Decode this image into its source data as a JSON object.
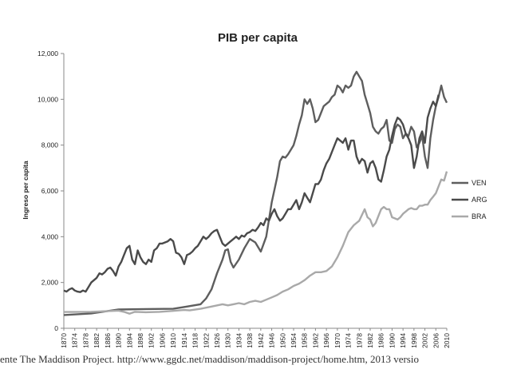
{
  "caption": "ente The Maddison Project. http://www.ggdc.net/maddison/maddison-project/home.htm, 2013 versio",
  "chart_data": {
    "type": "line",
    "title": "PIB per capita",
    "xlabel": "",
    "ylabel": "Ingreso per capita",
    "ylim": [
      0,
      12000
    ],
    "xlim": [
      1870,
      2010
    ],
    "grid": false,
    "legend_position": "right",
    "y_ticks": [
      "0",
      "2,000",
      "4,000",
      "6,000",
      "8,000",
      "10,000",
      "12,000"
    ],
    "x_ticks": [
      "1870",
      "1874",
      "1878",
      "1882",
      "1886",
      "1890",
      "1894",
      "1898",
      "1902",
      "1906",
      "1910",
      "1914",
      "1918",
      "1922",
      "1926",
      "1930",
      "1934",
      "1938",
      "1942",
      "1946",
      "1950",
      "1954",
      "1958",
      "1962",
      "1966",
      "1970",
      "1974",
      "1978",
      "1982",
      "1986",
      "1990",
      "1994",
      "1998",
      "2002",
      "2006",
      "2010"
    ],
    "series": [
      {
        "name": "VEN",
        "color": "#5e5e5e",
        "points": [
          [
            1870,
            580
          ],
          [
            1880,
            650
          ],
          [
            1890,
            820
          ],
          [
            1900,
            840
          ],
          [
            1910,
            850
          ],
          [
            1915,
            950
          ],
          [
            1920,
            1050
          ],
          [
            1922,
            1300
          ],
          [
            1924,
            1700
          ],
          [
            1926,
            2400
          ],
          [
            1928,
            3000
          ],
          [
            1929,
            3400
          ],
          [
            1930,
            3450
          ],
          [
            1931,
            2900
          ],
          [
            1932,
            2650
          ],
          [
            1934,
            3000
          ],
          [
            1936,
            3500
          ],
          [
            1938,
            3900
          ],
          [
            1940,
            3750
          ],
          [
            1942,
            3350
          ],
          [
            1944,
            4000
          ],
          [
            1946,
            5500
          ],
          [
            1948,
            6600
          ],
          [
            1949,
            7300
          ],
          [
            1950,
            7500
          ],
          [
            1951,
            7450
          ],
          [
            1952,
            7600
          ],
          [
            1953,
            7800
          ],
          [
            1954,
            8000
          ],
          [
            1955,
            8400
          ],
          [
            1956,
            8900
          ],
          [
            1957,
            9300
          ],
          [
            1958,
            10000
          ],
          [
            1959,
            9800
          ],
          [
            1960,
            10000
          ],
          [
            1961,
            9600
          ],
          [
            1962,
            9000
          ],
          [
            1963,
            9100
          ],
          [
            1964,
            9400
          ],
          [
            1965,
            9700
          ],
          [
            1966,
            9800
          ],
          [
            1967,
            9900
          ],
          [
            1968,
            10100
          ],
          [
            1969,
            10200
          ],
          [
            1970,
            10600
          ],
          [
            1971,
            10500
          ],
          [
            1972,
            10300
          ],
          [
            1973,
            10600
          ],
          [
            1974,
            10500
          ],
          [
            1975,
            10600
          ],
          [
            1976,
            11000
          ],
          [
            1977,
            11200
          ],
          [
            1978,
            11000
          ],
          [
            1979,
            10800
          ],
          [
            1980,
            10200
          ],
          [
            1981,
            9800
          ],
          [
            1982,
            9400
          ],
          [
            1983,
            8800
          ],
          [
            1984,
            8600
          ],
          [
            1985,
            8500
          ],
          [
            1986,
            8700
          ],
          [
            1987,
            8800
          ],
          [
            1988,
            9100
          ],
          [
            1989,
            8200
          ],
          [
            1990,
            8100
          ],
          [
            1991,
            8700
          ],
          [
            1992,
            8900
          ],
          [
            1993,
            8800
          ],
          [
            1994,
            8300
          ],
          [
            1995,
            8500
          ],
          [
            1996,
            8400
          ],
          [
            1997,
            8800
          ],
          [
            1998,
            8600
          ],
          [
            1999,
            7900
          ],
          [
            2000,
            8100
          ],
          [
            2001,
            8400
          ],
          [
            2002,
            7500
          ],
          [
            2003,
            7000
          ],
          [
            2004,
            8300
          ],
          [
            2005,
            9100
          ],
          [
            2006,
            9700
          ],
          [
            2007,
            10100
          ],
          [
            2008,
            10600
          ],
          [
            2009,
            10100
          ],
          [
            2010,
            9850
          ]
        ]
      },
      {
        "name": "ARG",
        "color": "#4a4a4a",
        "points": [
          [
            1870,
            1650
          ],
          [
            1871,
            1600
          ],
          [
            1872,
            1700
          ],
          [
            1873,
            1750
          ],
          [
            1874,
            1650
          ],
          [
            1875,
            1600
          ],
          [
            1876,
            1580
          ],
          [
            1877,
            1650
          ],
          [
            1878,
            1600
          ],
          [
            1879,
            1800
          ],
          [
            1880,
            2000
          ],
          [
            1881,
            2100
          ],
          [
            1882,
            2200
          ],
          [
            1883,
            2400
          ],
          [
            1884,
            2350
          ],
          [
            1885,
            2450
          ],
          [
            1886,
            2600
          ],
          [
            1887,
            2650
          ],
          [
            1888,
            2500
          ],
          [
            1889,
            2300
          ],
          [
            1890,
            2700
          ],
          [
            1891,
            2900
          ],
          [
            1892,
            3200
          ],
          [
            1893,
            3500
          ],
          [
            1894,
            3600
          ],
          [
            1895,
            3000
          ],
          [
            1896,
            2800
          ],
          [
            1897,
            3400
          ],
          [
            1898,
            3100
          ],
          [
            1899,
            2900
          ],
          [
            1900,
            2800
          ],
          [
            1901,
            3000
          ],
          [
            1902,
            2900
          ],
          [
            1903,
            3400
          ],
          [
            1904,
            3500
          ],
          [
            1905,
            3700
          ],
          [
            1906,
            3700
          ],
          [
            1907,
            3750
          ],
          [
            1908,
            3800
          ],
          [
            1909,
            3900
          ],
          [
            1910,
            3800
          ],
          [
            1911,
            3300
          ],
          [
            1912,
            3250
          ],
          [
            1913,
            3100
          ],
          [
            1914,
            2800
          ],
          [
            1915,
            3200
          ],
          [
            1916,
            3250
          ],
          [
            1917,
            3350
          ],
          [
            1918,
            3500
          ],
          [
            1919,
            3600
          ],
          [
            1920,
            3800
          ],
          [
            1921,
            4000
          ],
          [
            1922,
            3900
          ],
          [
            1923,
            4000
          ],
          [
            1924,
            4150
          ],
          [
            1925,
            4250
          ],
          [
            1926,
            4300
          ],
          [
            1927,
            4000
          ],
          [
            1928,
            3700
          ],
          [
            1929,
            3600
          ],
          [
            1930,
            3700
          ],
          [
            1931,
            3800
          ],
          [
            1932,
            3900
          ],
          [
            1933,
            4000
          ],
          [
            1934,
            3900
          ],
          [
            1935,
            4050
          ],
          [
            1936,
            4000
          ],
          [
            1937,
            4150
          ],
          [
            1938,
            4200
          ],
          [
            1939,
            4300
          ],
          [
            1940,
            4250
          ],
          [
            1941,
            4400
          ],
          [
            1942,
            4600
          ],
          [
            1943,
            4500
          ],
          [
            1944,
            4800
          ],
          [
            1945,
            4700
          ],
          [
            1946,
            5000
          ],
          [
            1947,
            5200
          ],
          [
            1948,
            4900
          ],
          [
            1949,
            4700
          ],
          [
            1950,
            4800
          ],
          [
            1951,
            5000
          ],
          [
            1952,
            5200
          ],
          [
            1953,
            5200
          ],
          [
            1954,
            5400
          ],
          [
            1955,
            5600
          ],
          [
            1956,
            5200
          ],
          [
            1957,
            5500
          ],
          [
            1958,
            5900
          ],
          [
            1959,
            5700
          ],
          [
            1960,
            5500
          ],
          [
            1961,
            5900
          ],
          [
            1962,
            6300
          ],
          [
            1963,
            6300
          ],
          [
            1964,
            6500
          ],
          [
            1965,
            6900
          ],
          [
            1966,
            7200
          ],
          [
            1967,
            7400
          ],
          [
            1968,
            7700
          ],
          [
            1969,
            8000
          ],
          [
            1970,
            8300
          ],
          [
            1971,
            8200
          ],
          [
            1972,
            8100
          ],
          [
            1973,
            8300
          ],
          [
            1974,
            7800
          ],
          [
            1975,
            8200
          ],
          [
            1976,
            8200
          ],
          [
            1977,
            7500
          ],
          [
            1978,
            7200
          ],
          [
            1979,
            7400
          ],
          [
            1980,
            7300
          ],
          [
            1981,
            6800
          ],
          [
            1982,
            7200
          ],
          [
            1983,
            7300
          ],
          [
            1984,
            7000
          ],
          [
            1985,
            6500
          ],
          [
            1986,
            6400
          ],
          [
            1987,
            6900
          ],
          [
            1988,
            7500
          ],
          [
            1989,
            7800
          ],
          [
            1990,
            8400
          ],
          [
            1991,
            8900
          ],
          [
            1992,
            9200
          ],
          [
            1993,
            9100
          ],
          [
            1994,
            8900
          ],
          [
            1995,
            8500
          ],
          [
            1996,
            8300
          ],
          [
            1997,
            8000
          ],
          [
            1998,
            7000
          ],
          [
            1999,
            7500
          ],
          [
            2000,
            8300
          ],
          [
            2001,
            8600
          ],
          [
            2002,
            8100
          ],
          [
            2003,
            9200
          ],
          [
            2004,
            9600
          ],
          [
            2005,
            9900
          ],
          [
            2006,
            9700
          ],
          [
            2007,
            10200
          ]
        ]
      },
      {
        "name": "BRA",
        "color": "#a9a9a9",
        "points": [
          [
            1870,
            710
          ],
          [
            1880,
            720
          ],
          [
            1890,
            770
          ],
          [
            1892,
            720
          ],
          [
            1894,
            640
          ],
          [
            1896,
            720
          ],
          [
            1900,
            700
          ],
          [
            1905,
            720
          ],
          [
            1910,
            760
          ],
          [
            1914,
            800
          ],
          [
            1916,
            780
          ],
          [
            1920,
            850
          ],
          [
            1924,
            950
          ],
          [
            1928,
            1050
          ],
          [
            1930,
            1000
          ],
          [
            1932,
            1050
          ],
          [
            1934,
            1100
          ],
          [
            1936,
            1050
          ],
          [
            1938,
            1150
          ],
          [
            1940,
            1200
          ],
          [
            1942,
            1150
          ],
          [
            1944,
            1250
          ],
          [
            1946,
            1350
          ],
          [
            1948,
            1450
          ],
          [
            1950,
            1600
          ],
          [
            1952,
            1700
          ],
          [
            1954,
            1850
          ],
          [
            1956,
            1950
          ],
          [
            1958,
            2100
          ],
          [
            1960,
            2300
          ],
          [
            1962,
            2450
          ],
          [
            1964,
            2450
          ],
          [
            1966,
            2500
          ],
          [
            1968,
            2700
          ],
          [
            1970,
            3100
          ],
          [
            1972,
            3600
          ],
          [
            1974,
            4200
          ],
          [
            1976,
            4500
          ],
          [
            1978,
            4700
          ],
          [
            1980,
            5200
          ],
          [
            1981,
            4850
          ],
          [
            1982,
            4750
          ],
          [
            1983,
            4450
          ],
          [
            1984,
            4600
          ],
          [
            1985,
            4900
          ],
          [
            1986,
            5200
          ],
          [
            1987,
            5300
          ],
          [
            1988,
            5200
          ],
          [
            1989,
            5200
          ],
          [
            1990,
            4850
          ],
          [
            1991,
            4800
          ],
          [
            1992,
            4750
          ],
          [
            1993,
            4850
          ],
          [
            1994,
            5000
          ],
          [
            1995,
            5100
          ],
          [
            1996,
            5200
          ],
          [
            1997,
            5250
          ],
          [
            1998,
            5200
          ],
          [
            1999,
            5200
          ],
          [
            2000,
            5350
          ],
          [
            2001,
            5350
          ],
          [
            2002,
            5400
          ],
          [
            2003,
            5400
          ],
          [
            2004,
            5600
          ],
          [
            2005,
            5750
          ],
          [
            2006,
            5900
          ],
          [
            2007,
            6200
          ],
          [
            2008,
            6500
          ],
          [
            2009,
            6450
          ],
          [
            2010,
            6850
          ]
        ]
      }
    ]
  }
}
